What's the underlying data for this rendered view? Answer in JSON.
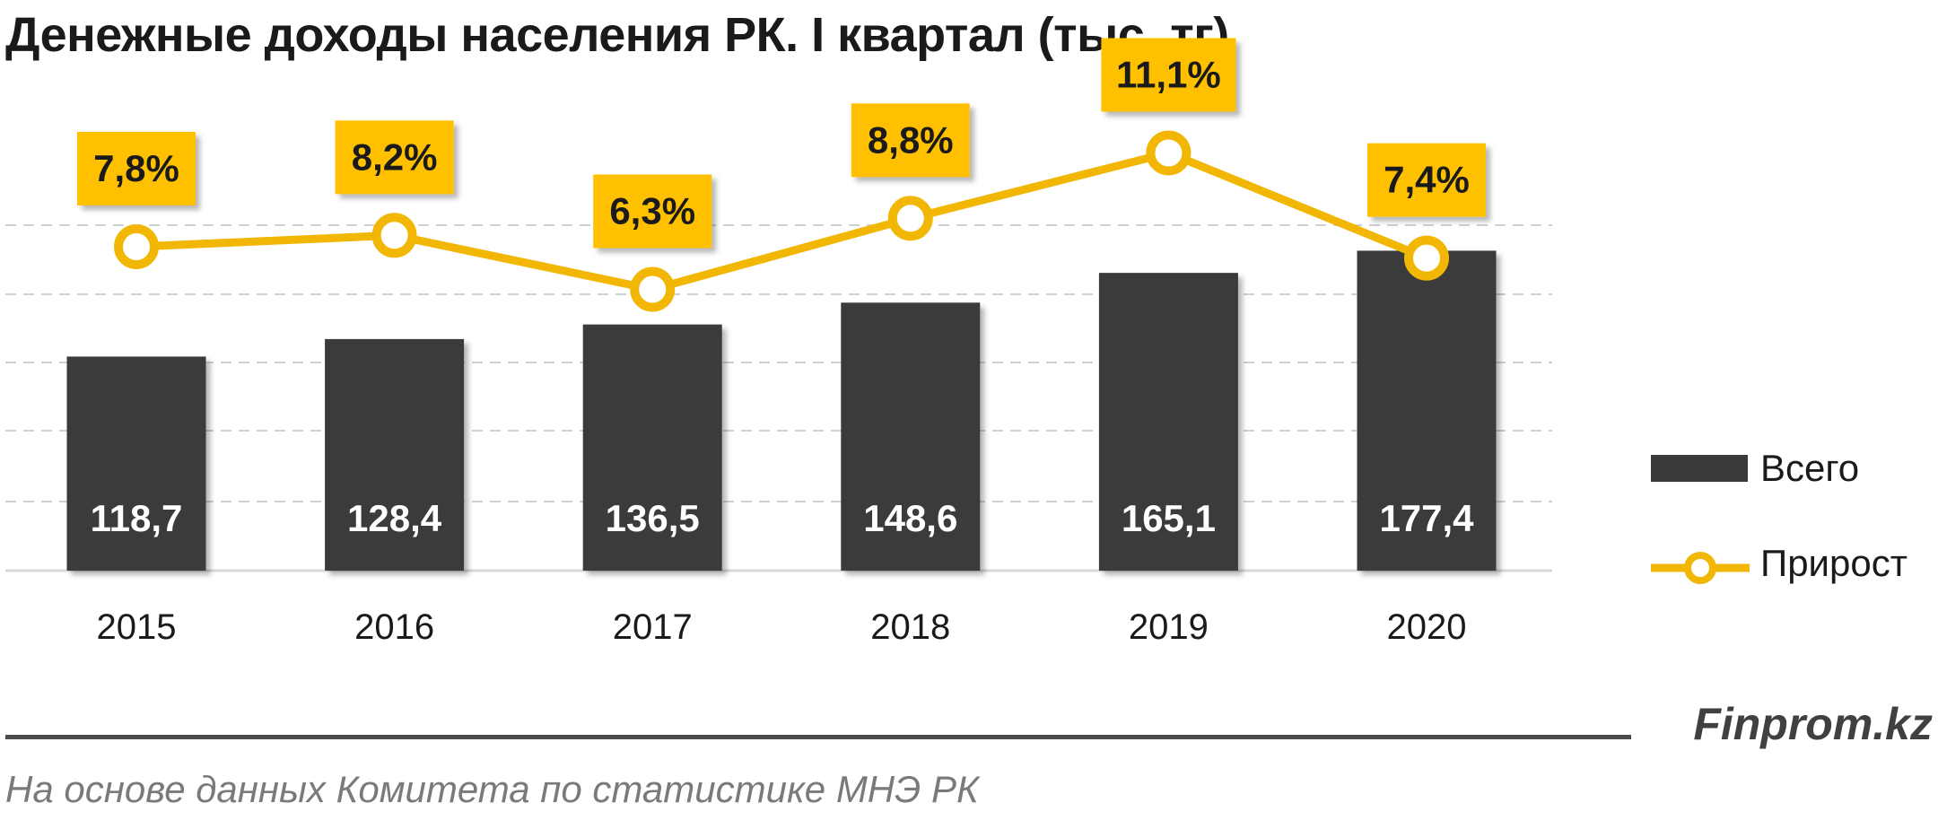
{
  "title": "Денежные доходы населения РК. I квартал  (тыс. тг)",
  "brand": "Finprom.kz",
  "source": "На основе данных  Комитета по статистике МНЭ РК",
  "colors": {
    "bar": "#3a3a3a",
    "line": "#f2b705",
    "label_box": "#ffc000",
    "grid": "#d0d0d0"
  },
  "chart_data": {
    "type": "bar",
    "categories": [
      "2015",
      "2016",
      "2017",
      "2018",
      "2019",
      "2020"
    ],
    "series": [
      {
        "name": "Всего",
        "type": "bar",
        "values": [
          118.7,
          128.4,
          136.5,
          148.6,
          165.1,
          177.4
        ],
        "labels": [
          "118,7",
          "128,4",
          "136,5",
          "148,6",
          "165,1",
          "177,4"
        ]
      },
      {
        "name": "Прирост",
        "type": "line",
        "values": [
          7.8,
          8.2,
          6.3,
          8.8,
          11.1,
          7.4
        ],
        "labels": [
          "7,8%",
          "8,2%",
          "6,3%",
          "8,8%",
          "11,1%",
          "7,4%"
        ]
      }
    ],
    "legend": {
      "position": "right",
      "items": [
        "Всего",
        "Прирост"
      ]
    },
    "grid": true
  }
}
